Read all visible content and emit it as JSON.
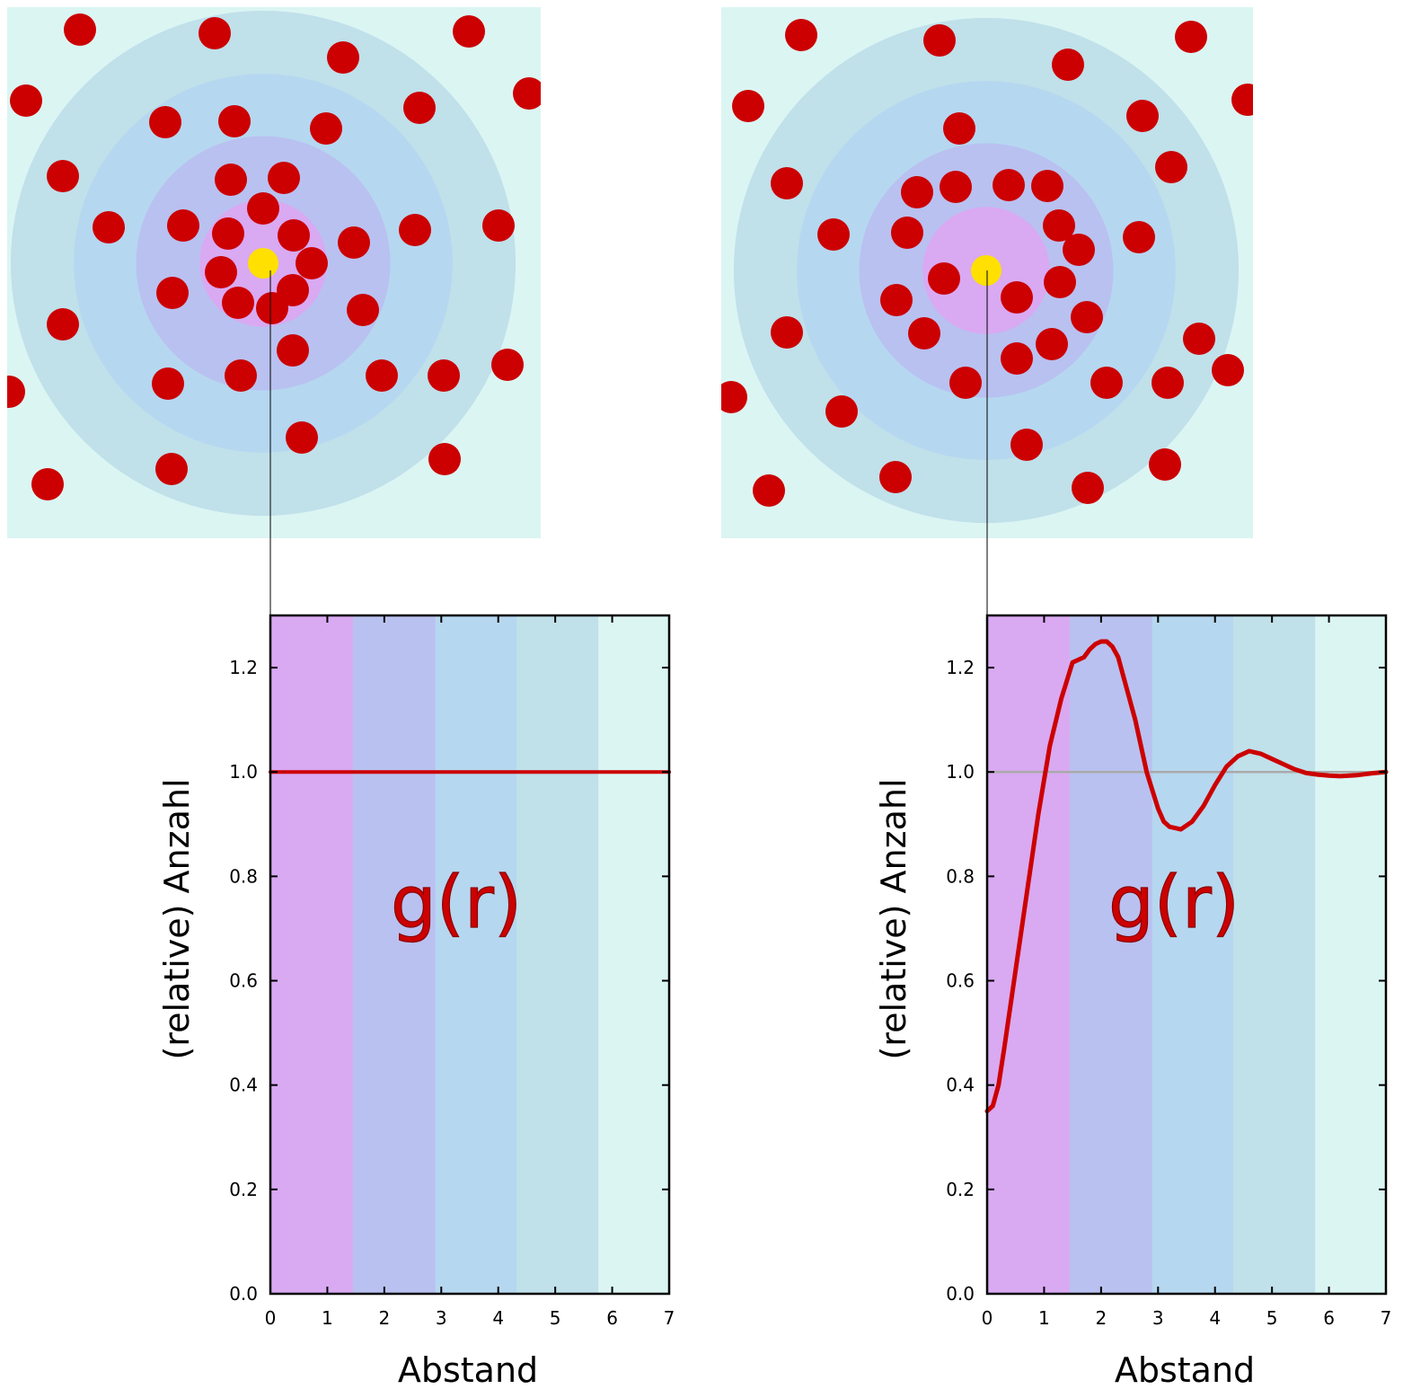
{
  "colors": {
    "band_1": "#d9a9f2",
    "band_2": "#b9c1f0",
    "band_3": "#b6d7f0",
    "band_4": "#c0e0ea",
    "band_5": "#dbf5f3",
    "particle": "#cc0000",
    "reference_particle": "#ffe000",
    "curve": "#cc0000",
    "reference_line": "#aaaaaa"
  },
  "shells": [
    1.45,
    2.9,
    4.32,
    5.76
  ],
  "chart_data": [
    {
      "type": "line",
      "panel": "left",
      "curve_label": "g(r)",
      "xlabel": "Abstand",
      "ylabel": "(relative)  Anzahl",
      "xlim": [
        0,
        7
      ],
      "ylim": [
        0,
        1.3
      ],
      "xticks": [
        "0",
        "1",
        "2",
        "3",
        "4",
        "5",
        "6",
        "7"
      ],
      "yticks": [
        "0.0",
        "0.2",
        "0.4",
        "0.6",
        "0.8",
        "1.0",
        "1.2"
      ],
      "series": [
        {
          "x": [
            0,
            7
          ],
          "y": [
            1.0,
            1.0
          ]
        }
      ]
    },
    {
      "type": "line",
      "panel": "right",
      "curve_label": "g(r)",
      "xlabel": "Abstand",
      "ylabel": "(relative)  Anzahl",
      "xlim": [
        0,
        7
      ],
      "ylim": [
        0,
        1.3
      ],
      "xticks": [
        "0",
        "1",
        "2",
        "3",
        "4",
        "5",
        "6",
        "7"
      ],
      "yticks": [
        "0.0",
        "0.2",
        "0.4",
        "0.6",
        "0.8",
        "1.0",
        "1.2"
      ],
      "reference_line": 1.0,
      "series": [
        {
          "x": [
            0,
            0.1,
            0.2,
            0.3,
            0.5,
            0.7,
            0.9,
            1.1,
            1.3,
            1.5,
            1.7,
            1.8,
            1.9,
            2.0,
            2.1,
            2.2,
            2.3,
            2.4,
            2.6,
            2.8,
            3.0,
            3.1,
            3.2,
            3.4,
            3.6,
            3.8,
            4.0,
            4.2,
            4.4,
            4.6,
            4.8,
            5.0,
            5.2,
            5.4,
            5.6,
            5.8,
            6.0,
            6.2,
            6.5,
            6.8,
            7.0
          ],
          "y": [
            0.35,
            0.36,
            0.4,
            0.47,
            0.62,
            0.77,
            0.92,
            1.05,
            1.14,
            1.21,
            1.22,
            1.235,
            1.245,
            1.25,
            1.25,
            1.24,
            1.22,
            1.18,
            1.1,
            1.0,
            0.93,
            0.905,
            0.895,
            0.89,
            0.905,
            0.935,
            0.975,
            1.01,
            1.03,
            1.04,
            1.035,
            1.025,
            1.015,
            1.005,
            0.998,
            0.995,
            0.993,
            0.992,
            0.994,
            0.998,
            1.0
          ]
        }
      ]
    }
  ],
  "particle_panels": [
    {
      "panel": "left",
      "center": [
        293,
        293
      ],
      "particles": [
        [
          89,
          33
        ],
        [
          239,
          37
        ],
        [
          382,
          64
        ],
        [
          522,
          35
        ],
        [
          29,
          112
        ],
        [
          184,
          136
        ],
        [
          261,
          135
        ],
        [
          363,
          143
        ],
        [
          467,
          120
        ],
        [
          589,
          104
        ],
        [
          70,
          196
        ],
        [
          257,
          200
        ],
        [
          316,
          198
        ],
        [
          121,
          253
        ],
        [
          204,
          251
        ],
        [
          293,
          232
        ],
        [
          254,
          260
        ],
        [
          327,
          262
        ],
        [
          394,
          270
        ],
        [
          462,
          256
        ],
        [
          555,
          251
        ],
        [
          246,
          303
        ],
        [
          347,
          293
        ],
        [
          326,
          323
        ],
        [
          192,
          326
        ],
        [
          265,
          337
        ],
        [
          303,
          343
        ],
        [
          404,
          345
        ],
        [
          70,
          361
        ],
        [
          326,
          390
        ],
        [
          268,
          418
        ],
        [
          187,
          427
        ],
        [
          425,
          418
        ],
        [
          494,
          418
        ],
        [
          565,
          406
        ],
        [
          10,
          436
        ],
        [
          336,
          487
        ],
        [
          191,
          522
        ],
        [
          495,
          511
        ],
        [
          53,
          539
        ]
      ]
    },
    {
      "panel": "right",
      "center": [
        1098,
        301
      ],
      "particles": [
        [
          892,
          39
        ],
        [
          1046,
          45
        ],
        [
          1189,
          72
        ],
        [
          1326,
          41
        ],
        [
          833,
          118
        ],
        [
          1068,
          143
        ],
        [
          1272,
          129
        ],
        [
          1389,
          111
        ],
        [
          1304,
          186
        ],
        [
          876,
          204
        ],
        [
          1021,
          214
        ],
        [
          1064,
          208
        ],
        [
          1123,
          206
        ],
        [
          1166,
          207
        ],
        [
          928,
          261
        ],
        [
          1010,
          259
        ],
        [
          1179,
          251
        ],
        [
          1201,
          278
        ],
        [
          1268,
          264
        ],
        [
          1051,
          310
        ],
        [
          1132,
          331
        ],
        [
          1180,
          314
        ],
        [
          998,
          334
        ],
        [
          1210,
          353
        ],
        [
          876,
          370
        ],
        [
          1029,
          371
        ],
        [
          1171,
          383
        ],
        [
          1335,
          377
        ],
        [
          1132,
          399
        ],
        [
          1075,
          426
        ],
        [
          1232,
          426
        ],
        [
          1300,
          426
        ],
        [
          1367,
          412
        ],
        [
          814,
          442
        ],
        [
          937,
          458
        ],
        [
          1143,
          495
        ],
        [
          997,
          531
        ],
        [
          1297,
          517
        ],
        [
          856,
          546
        ],
        [
          1211,
          543
        ]
      ]
    }
  ]
}
